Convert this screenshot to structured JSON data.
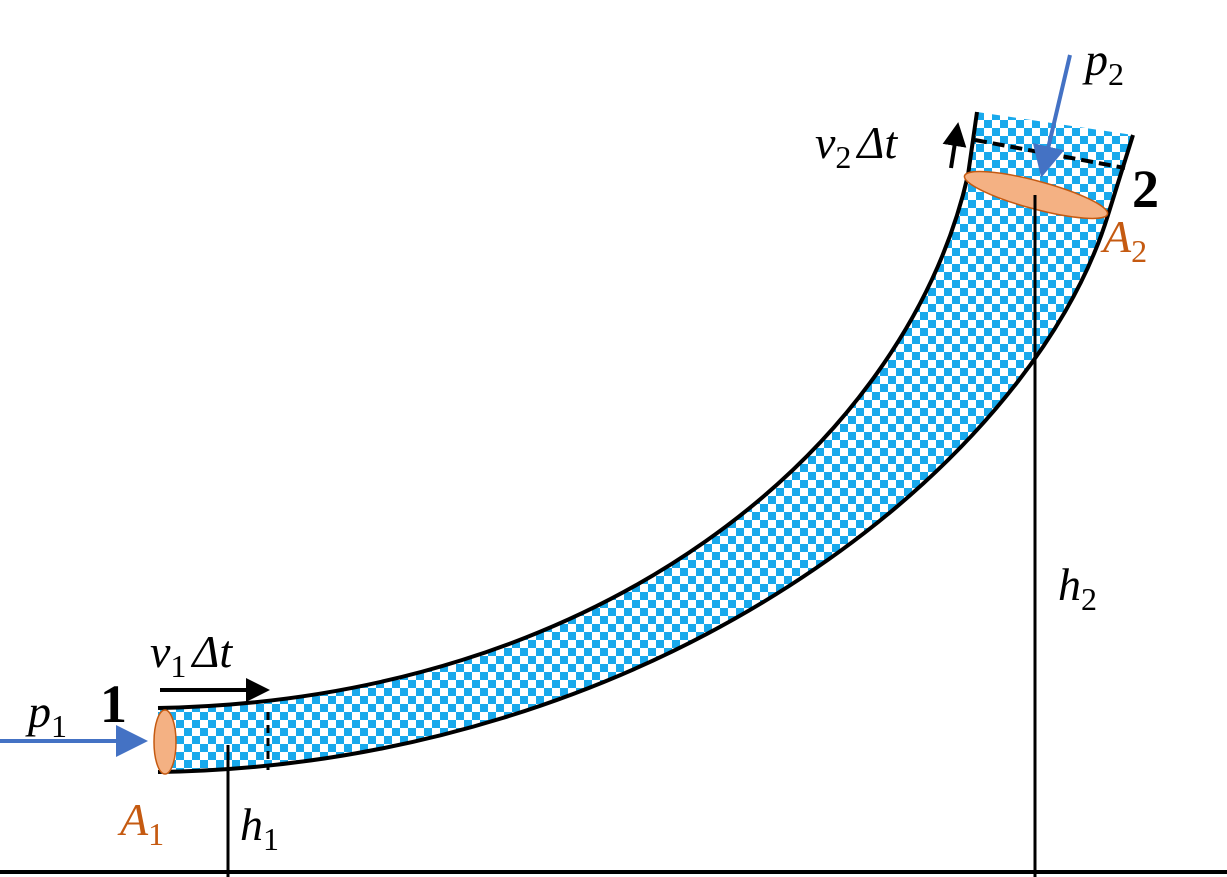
{
  "points": [
    "1",
    "2"
  ],
  "labels": [
    {
      "symbol": "p",
      "subscript": "1"
    },
    {
      "symbol": "v",
      "subscript": "1",
      "suffix": "Δt"
    },
    {
      "symbol": "A",
      "subscript": "1"
    },
    {
      "symbol": "h",
      "subscript": "1"
    },
    {
      "symbol": "p",
      "subscript": "2"
    },
    {
      "symbol": "v",
      "subscript": "2",
      "suffix": "Δt"
    },
    {
      "symbol": "A",
      "subscript": "2"
    },
    {
      "symbol": "h",
      "subscript": "2"
    }
  ]
}
